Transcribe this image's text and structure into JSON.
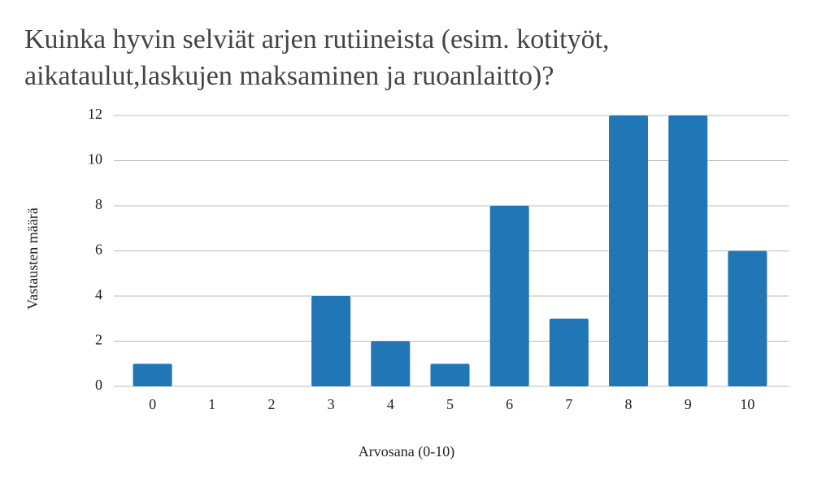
{
  "chart_data": {
    "type": "bar",
    "title": "Kuinka hyvin selviät arjen rutiineista (esim. kotityöt, aikataulut,laskujen maksaminen ja ruoanlaitto)?",
    "x_label": "Arvosana (0-10)",
    "y_label": "Vastausten määrä",
    "categories": [
      "0",
      "1",
      "2",
      "3",
      "4",
      "5",
      "6",
      "7",
      "8",
      "9",
      "10"
    ],
    "values": [
      1,
      0,
      0,
      4,
      2,
      1,
      8,
      3,
      12,
      12,
      6
    ],
    "color": "#2176b5",
    "ylim": [
      0,
      12
    ],
    "yticks": [
      0,
      2,
      4,
      6,
      8,
      10,
      12
    ],
    "grid": true
  }
}
